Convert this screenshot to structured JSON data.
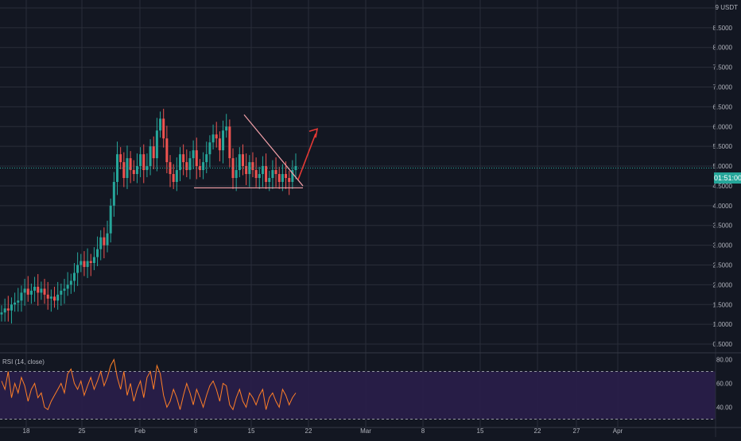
{
  "price_axis": {
    "unit_label": "USDT",
    "ticks": [
      "9.0000",
      "8.5000",
      "8.0000",
      "7.5000",
      "7.0000",
      "6.5000",
      "6.0000",
      "5.5000",
      "5.0000",
      "4.5000",
      "4.0000",
      "3.5000",
      "3.0000",
      "2.5000",
      "2.0000",
      "1.5000",
      "1.0000",
      "0.5000"
    ],
    "countdown": "01:51:00"
  },
  "rsi_pane": {
    "label": "RSI (14, close)",
    "ticks": [
      "80.00",
      "60.00",
      "40.00"
    ],
    "upper_band": 70,
    "lower_band": 30
  },
  "time_axis": {
    "labels": [
      "18",
      "25",
      "Feb",
      "8",
      "15",
      "22",
      "Mar",
      "8",
      "15",
      "22",
      "27",
      "Apr"
    ]
  },
  "colors": {
    "background": "#131722",
    "grid": "#2a2e39",
    "up_candle": "#26a69a",
    "down_candle": "#ef5350",
    "rsi_line": "#ff7f27",
    "rsi_band_fill": "#2a1e4a",
    "current_price_tag": "#26a69a",
    "triangle_lines": "#f2a0a8",
    "projection_arrow": "#e53935"
  },
  "chart_data": {
    "type": "candlestick",
    "price_range": [
      0.3,
      9.2
    ],
    "price_close_series": [
      1.3,
      1.4,
      1.35,
      1.5,
      1.55,
      1.6,
      1.8,
      1.9,
      1.75,
      1.85,
      1.95,
      1.8,
      1.9,
      1.75,
      1.65,
      1.7,
      1.6,
      1.75,
      1.85,
      1.9,
      2.0,
      2.1,
      2.3,
      2.5,
      2.6,
      2.45,
      2.6,
      2.55,
      2.7,
      2.9,
      3.2,
      3.0,
      3.3,
      4.0,
      4.6,
      5.3,
      5.1,
      4.7,
      5.2,
      4.9,
      4.8,
      5.0,
      5.3,
      4.9,
      5.0,
      5.5,
      5.2,
      5.9,
      6.2,
      5.7,
      5.1,
      4.8,
      4.6,
      4.9,
      5.3,
      5.1,
      4.9,
      5.2,
      5.4,
      5.0,
      4.9,
      5.1,
      5.3,
      5.6,
      5.8,
      5.7,
      5.4,
      5.9,
      6.0,
      5.2,
      4.7,
      4.9,
      5.3,
      5.0,
      4.8,
      5.1,
      4.9,
      4.7,
      4.8,
      5.0,
      4.6,
      4.7,
      4.9,
      4.8,
      4.6,
      4.8,
      4.7,
      4.6,
      4.9,
      5.0
    ],
    "current_price": 4.95,
    "annotations": {
      "support_level": 4.45,
      "triangle_top_price": 6.3,
      "projection_target_price": 5.9
    },
    "rsi_series": [
      62,
      55,
      70,
      48,
      60,
      52,
      65,
      58,
      45,
      55,
      60,
      48,
      52,
      40,
      38,
      45,
      50,
      55,
      60,
      52,
      68,
      72,
      60,
      55,
      62,
      50,
      58,
      65,
      55,
      62,
      70,
      58,
      65,
      75,
      80,
      65,
      55,
      70,
      50,
      60,
      45,
      55,
      62,
      48,
      65,
      70,
      55,
      75,
      68,
      50,
      40,
      45,
      55,
      48,
      38,
      50,
      60,
      52,
      42,
      55,
      48,
      40,
      50,
      58,
      62,
      55,
      45,
      60,
      58,
      42,
      38,
      48,
      55,
      45,
      40,
      52,
      48,
      42,
      50,
      55,
      38,
      48,
      52,
      45,
      40,
      55,
      50,
      42,
      48,
      52
    ]
  }
}
